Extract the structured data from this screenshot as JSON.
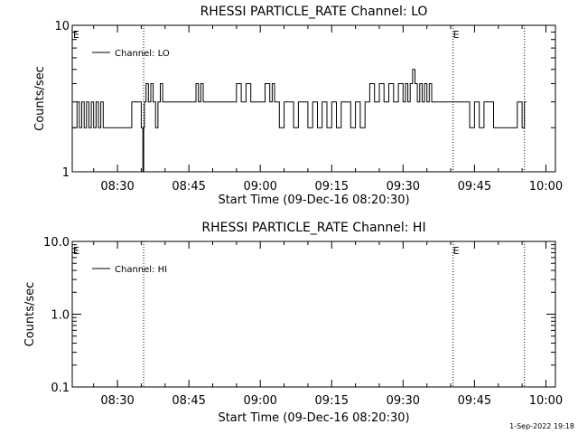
{
  "footer": {
    "timestamp": "1-Sep-2022 19:18"
  },
  "chart_data": [
    {
      "type": "line",
      "title": "RHESSI PARTICLE_RATE Channel: LO",
      "xlabel": "Start Time (09-Dec-16 08:20:30)",
      "ylabel": "Counts/sec",
      "yscale": "log",
      "ylim": [
        1,
        10
      ],
      "y_ticks": [
        1,
        10
      ],
      "y_tick_labels": [
        "1",
        "10"
      ],
      "xlim_minutes": [
        "08:20:30",
        "10:02:00"
      ],
      "x_ticks": [
        "08:30",
        "08:45",
        "09:00",
        "09:15",
        "09:30",
        "09:45",
        "10:00"
      ],
      "legend": {
        "label": "Channel: LO",
        "placement": "top-left"
      },
      "event_markers": [
        {
          "time": "08:20:30",
          "label": "E"
        },
        {
          "time": "09:40:30",
          "label": "E"
        }
      ],
      "vlines": [
        "08:35:30",
        "09:40:30",
        "09:55:30"
      ],
      "series": [
        {
          "name": "Channel: LO",
          "x": [
            "08:20:30",
            "08:21:30",
            "08:22:00",
            "08:22:30",
            "08:23:00",
            "08:23:30",
            "08:24:00",
            "08:24:30",
            "08:25:00",
            "08:25:30",
            "08:26:00",
            "08:26:30",
            "08:27:00",
            "08:28:00",
            "08:29:00",
            "08:30:00",
            "08:31:00",
            "08:32:00",
            "08:33:00",
            "08:34:00",
            "08:35:00",
            "08:35:20",
            "08:35:30",
            "08:35:40",
            "08:36:00",
            "08:36:30",
            "08:37:00",
            "08:37:30",
            "08:38:00",
            "08:38:30",
            "08:39:00",
            "08:39:30",
            "08:40:00",
            "08:41:00",
            "08:42:00",
            "08:43:00",
            "08:44:00",
            "08:45:00",
            "08:46:00",
            "08:46:30",
            "08:47:00",
            "08:47:30",
            "08:48:00",
            "08:49:00",
            "08:50:00",
            "08:51:00",
            "08:52:00",
            "08:53:00",
            "08:54:00",
            "08:55:00",
            "08:56:00",
            "08:57:00",
            "08:58:00",
            "08:59:00",
            "09:00:00",
            "09:01:00",
            "09:02:00",
            "09:02:30",
            "09:03:00",
            "09:04:00",
            "09:05:00",
            "09:06:00",
            "09:07:00",
            "09:08:00",
            "09:09:00",
            "09:10:00",
            "09:11:00",
            "09:12:00",
            "09:13:00",
            "09:14:00",
            "09:15:00",
            "09:16:00",
            "09:17:00",
            "09:18:00",
            "09:19:00",
            "09:20:00",
            "09:21:00",
            "09:22:00",
            "09:23:00",
            "09:24:00",
            "09:25:00",
            "09:26:00",
            "09:27:00",
            "09:28:00",
            "09:29:00",
            "09:30:00",
            "09:30:30",
            "09:31:00",
            "09:31:30",
            "09:32:00",
            "09:32:30",
            "09:33:00",
            "09:33:30",
            "09:34:00",
            "09:34:30",
            "09:35:00",
            "09:35:30",
            "09:36:00",
            "09:37:00",
            "09:38:00",
            "09:39:00",
            "09:40:00",
            "09:41:00",
            "09:42:00",
            "09:43:00",
            "09:44:00",
            "09:45:00",
            "09:46:00",
            "09:47:00",
            "09:48:00",
            "09:49:00",
            "09:50:00",
            "09:51:00",
            "09:52:00",
            "09:53:00",
            "09:54:00",
            "09:55:00",
            "09:55:30"
          ],
          "y": [
            2,
            3,
            2,
            3,
            2,
            3,
            2,
            3,
            2,
            3,
            2,
            3,
            2,
            2,
            2,
            2,
            2,
            2,
            3,
            3,
            2,
            1,
            2,
            3,
            4,
            3,
            4,
            3,
            2,
            3,
            4,
            3,
            3,
            3,
            3,
            3,
            3,
            3,
            3,
            4,
            3,
            4,
            3,
            3,
            3,
            3,
            3,
            3,
            3,
            4,
            3,
            4,
            3,
            3,
            3,
            4,
            3,
            4,
            3,
            2,
            3,
            3,
            2,
            3,
            3,
            2,
            3,
            2,
            3,
            2,
            3,
            2,
            3,
            3,
            2,
            3,
            2,
            3,
            4,
            3,
            4,
            3,
            4,
            3,
            4,
            3,
            4,
            3,
            4,
            5,
            4,
            3,
            4,
            3,
            4,
            3,
            4,
            3,
            3,
            3,
            3,
            3,
            3,
            3,
            3,
            2,
            3,
            2,
            3,
            3,
            2,
            2,
            2,
            2,
            2,
            3,
            2,
            3
          ]
        }
      ]
    },
    {
      "type": "line",
      "title": "RHESSI PARTICLE_RATE Channel: HI",
      "xlabel": "Start Time (09-Dec-16 08:20:30)",
      "ylabel": "Counts/sec",
      "yscale": "log",
      "ylim": [
        0.1,
        10
      ],
      "y_ticks": [
        0.1,
        1,
        10
      ],
      "y_tick_labels": [
        "0.1",
        "1.0",
        "10.0"
      ],
      "xlim_minutes": [
        "08:20:30",
        "10:02:00"
      ],
      "x_ticks": [
        "08:30",
        "08:45",
        "09:00",
        "09:15",
        "09:30",
        "09:45",
        "10:00"
      ],
      "legend": {
        "label": "Channel: HI",
        "placement": "top-left"
      },
      "event_markers": [
        {
          "time": "08:20:30",
          "label": "E"
        },
        {
          "time": "09:40:30",
          "label": "E"
        }
      ],
      "vlines": [
        "08:35:30",
        "09:40:30",
        "09:55:30"
      ],
      "series": [
        {
          "name": "Channel: HI",
          "x": [],
          "y": []
        }
      ]
    }
  ]
}
